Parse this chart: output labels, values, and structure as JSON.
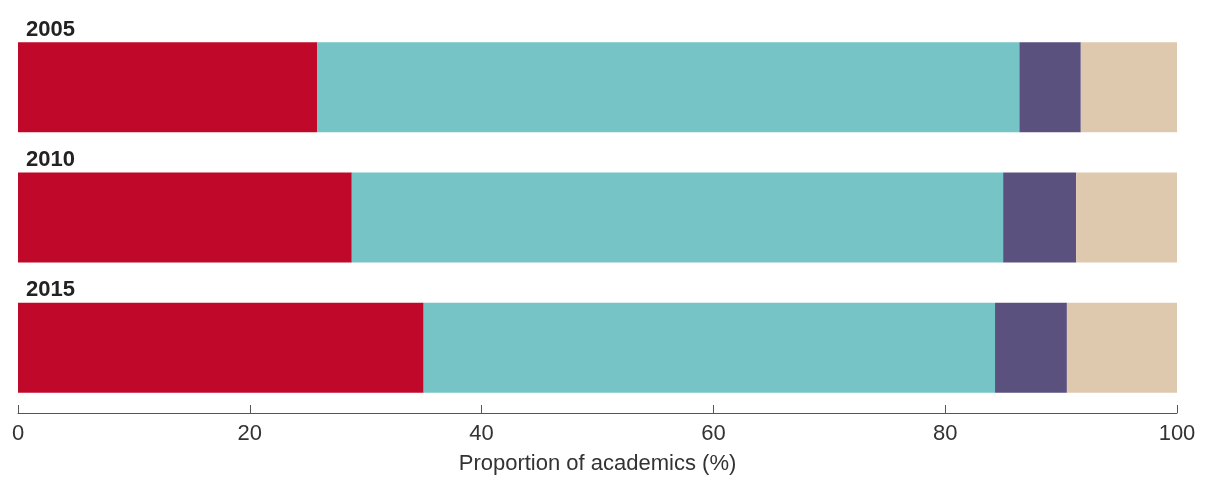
{
  "chart_data": {
    "type": "bar",
    "orientation": "horizontal",
    "stacked": true,
    "xlabel": "Proportion of academics (%)",
    "categories": [
      "2005",
      "2010",
      "2015"
    ],
    "series": [
      {
        "color": "#c0092a",
        "values": [
          25.8,
          28.8,
          35.0
        ]
      },
      {
        "color": "#76c4c5",
        "values": [
          60.6,
          56.2,
          49.3
        ]
      },
      {
        "color": "#5b517e",
        "values": [
          5.3,
          6.3,
          6.2
        ]
      },
      {
        "color": "#dfc9ae",
        "values": [
          8.3,
          8.7,
          9.5
        ]
      }
    ],
    "xlim": [
      0,
      100
    ],
    "xticks": [
      0,
      20,
      40,
      60,
      80,
      100
    ],
    "grid": false
  }
}
